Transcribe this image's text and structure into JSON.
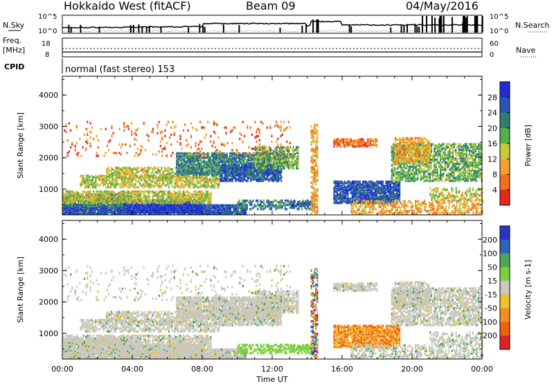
{
  "header": {
    "station": "Hokkaido West (fitACF)",
    "beam": "Beam 09",
    "date": "04/May/2016"
  },
  "noise_panel": {
    "left_label": "N.Sky",
    "right_label": "N.Search",
    "ticks_left": [
      "10^5",
      "10^0"
    ],
    "ticks_right": [
      "10^5",
      "10^0"
    ]
  },
  "freq_panel": {
    "left_label_1": "Freq.",
    "left_label_2": "[MHz]",
    "ticks_left": [
      "18",
      "8"
    ],
    "right_label": "Nave",
    "ticks_right": [
      "60",
      "0"
    ]
  },
  "cpid": {
    "label": "CPID",
    "mode": "normal (fast stereo) 153"
  },
  "chart_data": [
    {
      "type": "heatmap",
      "ylabel": "Slant Range [km]",
      "ylim": [
        180,
        4600
      ],
      "yticks": [
        "1000",
        "2000",
        "3000",
        "4000"
      ],
      "xticks": [
        "00:00",
        "04:00",
        "08:00",
        "12:00",
        "16:00",
        "20:00",
        "00:00"
      ],
      "colorbar": {
        "label": "Power [dB]",
        "ticks": [
          "4",
          "8",
          "12",
          "16",
          "20",
          "24",
          "28"
        ],
        "colors": [
          "#1f2bd6",
          "#2a55b8",
          "#2f7f6e",
          "#56b04a",
          "#c8c83c",
          "#f2a22c",
          "#f26f1e",
          "#e52a1a"
        ]
      }
    },
    {
      "type": "heatmap",
      "ylabel": "Slant Range [km]",
      "ylim": [
        180,
        4600
      ],
      "yticks": [
        "1000",
        "2000",
        "3000",
        "4000"
      ],
      "xticks": [
        "00:00",
        "04:00",
        "08:00",
        "12:00",
        "16:00",
        "20:00",
        "00:00"
      ],
      "xlabel": "Time UT",
      "colorbar": {
        "label": "Velocity [m s-1]",
        "ticks": [
          "200",
          "100",
          "50",
          "15",
          "-15",
          "-50",
          "-100",
          "-200"
        ],
        "colors": [
          "#2a34c8",
          "#2f62b8",
          "#4aa65a",
          "#7ed040",
          "#c8c8c0",
          "#f0c030",
          "#f09020",
          "#f06010",
          "#e02020"
        ]
      }
    }
  ]
}
